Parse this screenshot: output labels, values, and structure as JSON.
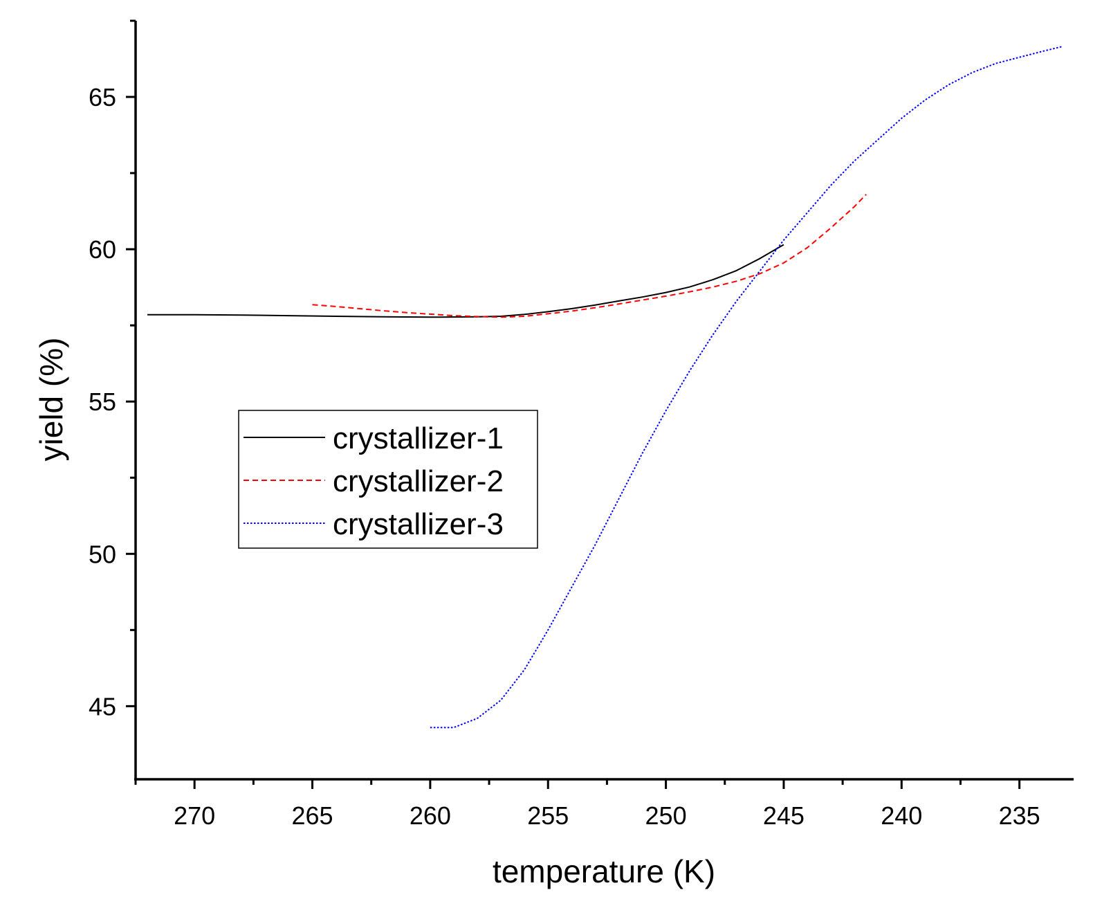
{
  "chart_data": {
    "type": "line",
    "xlabel": "temperature (K)",
    "ylabel": "yield (%)",
    "xlim": [
      272.5,
      232.7
    ],
    "ylim": [
      42.6,
      67.5
    ],
    "x_ticks": [
      270,
      265,
      260,
      255,
      250,
      245,
      240,
      235
    ],
    "y_ticks": [
      45,
      50,
      55,
      60,
      65
    ],
    "x_minor_step": 2.5,
    "y_minor_step": 2.5,
    "legend_position": "center-left",
    "series": [
      {
        "name": "crystallizer-1",
        "color": "#000000",
        "dash": "solid",
        "x": [
          272,
          270,
          268,
          266,
          264,
          262,
          260,
          258,
          257,
          256,
          255,
          254,
          253,
          252,
          251,
          250,
          249,
          248,
          247,
          246,
          245
        ],
        "y": [
          57.85,
          57.85,
          57.84,
          57.82,
          57.8,
          57.78,
          57.77,
          57.78,
          57.8,
          57.86,
          57.95,
          58.05,
          58.17,
          58.3,
          58.43,
          58.58,
          58.76,
          59.0,
          59.3,
          59.7,
          60.15
        ]
      },
      {
        "name": "crystallizer-2",
        "color": "#ff0000",
        "dash": "dashed",
        "x": [
          265,
          264,
          263,
          262,
          261,
          260,
          259,
          258,
          257,
          256,
          255,
          254,
          253,
          252,
          251,
          250,
          249,
          248,
          247,
          246,
          245,
          244,
          243,
          242,
          241.5
        ],
        "y": [
          58.18,
          58.12,
          58.05,
          57.98,
          57.92,
          57.87,
          57.82,
          57.79,
          57.77,
          57.8,
          57.88,
          57.97,
          58.08,
          58.2,
          58.33,
          58.46,
          58.6,
          58.76,
          58.95,
          59.2,
          59.55,
          60.05,
          60.7,
          61.4,
          61.8
        ]
      },
      {
        "name": "crystallizer-3",
        "color": "#0000ff",
        "dash": "dotted",
        "x": [
          260,
          259,
          258,
          257,
          256,
          255,
          254,
          253,
          252,
          251,
          250,
          249,
          248,
          247,
          246,
          245,
          244,
          243,
          242,
          241,
          240,
          239,
          238,
          237,
          236,
          235,
          234,
          233.2
        ],
        "y": [
          44.3,
          44.3,
          44.6,
          45.2,
          46.2,
          47.5,
          48.9,
          50.3,
          51.8,
          53.3,
          54.7,
          56.0,
          57.2,
          58.3,
          59.3,
          60.3,
          61.2,
          62.1,
          62.9,
          63.6,
          64.3,
          64.9,
          65.4,
          65.8,
          66.1,
          66.3,
          66.5,
          66.65
        ]
      }
    ]
  }
}
